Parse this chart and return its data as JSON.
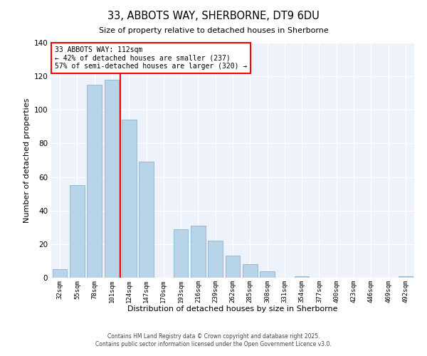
{
  "title": "33, ABBOTS WAY, SHERBORNE, DT9 6DU",
  "subtitle": "Size of property relative to detached houses in Sherborne",
  "xlabel": "Distribution of detached houses by size in Sherborne",
  "ylabel": "Number of detached properties",
  "bar_color": "#b8d4e8",
  "bar_edge_color": "#8ab4d0",
  "background_color": "#eef2fb",
  "grid_color": "#ffffff",
  "categories": [
    "32sqm",
    "55sqm",
    "78sqm",
    "101sqm",
    "124sqm",
    "147sqm",
    "170sqm",
    "193sqm",
    "216sqm",
    "239sqm",
    "262sqm",
    "285sqm",
    "308sqm",
    "331sqm",
    "354sqm",
    "377sqm",
    "400sqm",
    "423sqm",
    "446sqm",
    "469sqm",
    "492sqm"
  ],
  "values": [
    5,
    55,
    115,
    118,
    94,
    69,
    0,
    29,
    31,
    22,
    13,
    8,
    4,
    0,
    1,
    0,
    0,
    0,
    0,
    0,
    1
  ],
  "ylim": [
    0,
    140
  ],
  "yticks": [
    0,
    20,
    40,
    60,
    80,
    100,
    120,
    140
  ],
  "property_line_x": 3.5,
  "annotation_title": "33 ABBOTS WAY: 112sqm",
  "annotation_line1": "← 42% of detached houses are smaller (237)",
  "annotation_line2": "57% of semi-detached houses are larger (320) →",
  "footnote1": "Contains HM Land Registry data © Crown copyright and database right 2025.",
  "footnote2": "Contains public sector information licensed under the Open Government Licence v3.0."
}
